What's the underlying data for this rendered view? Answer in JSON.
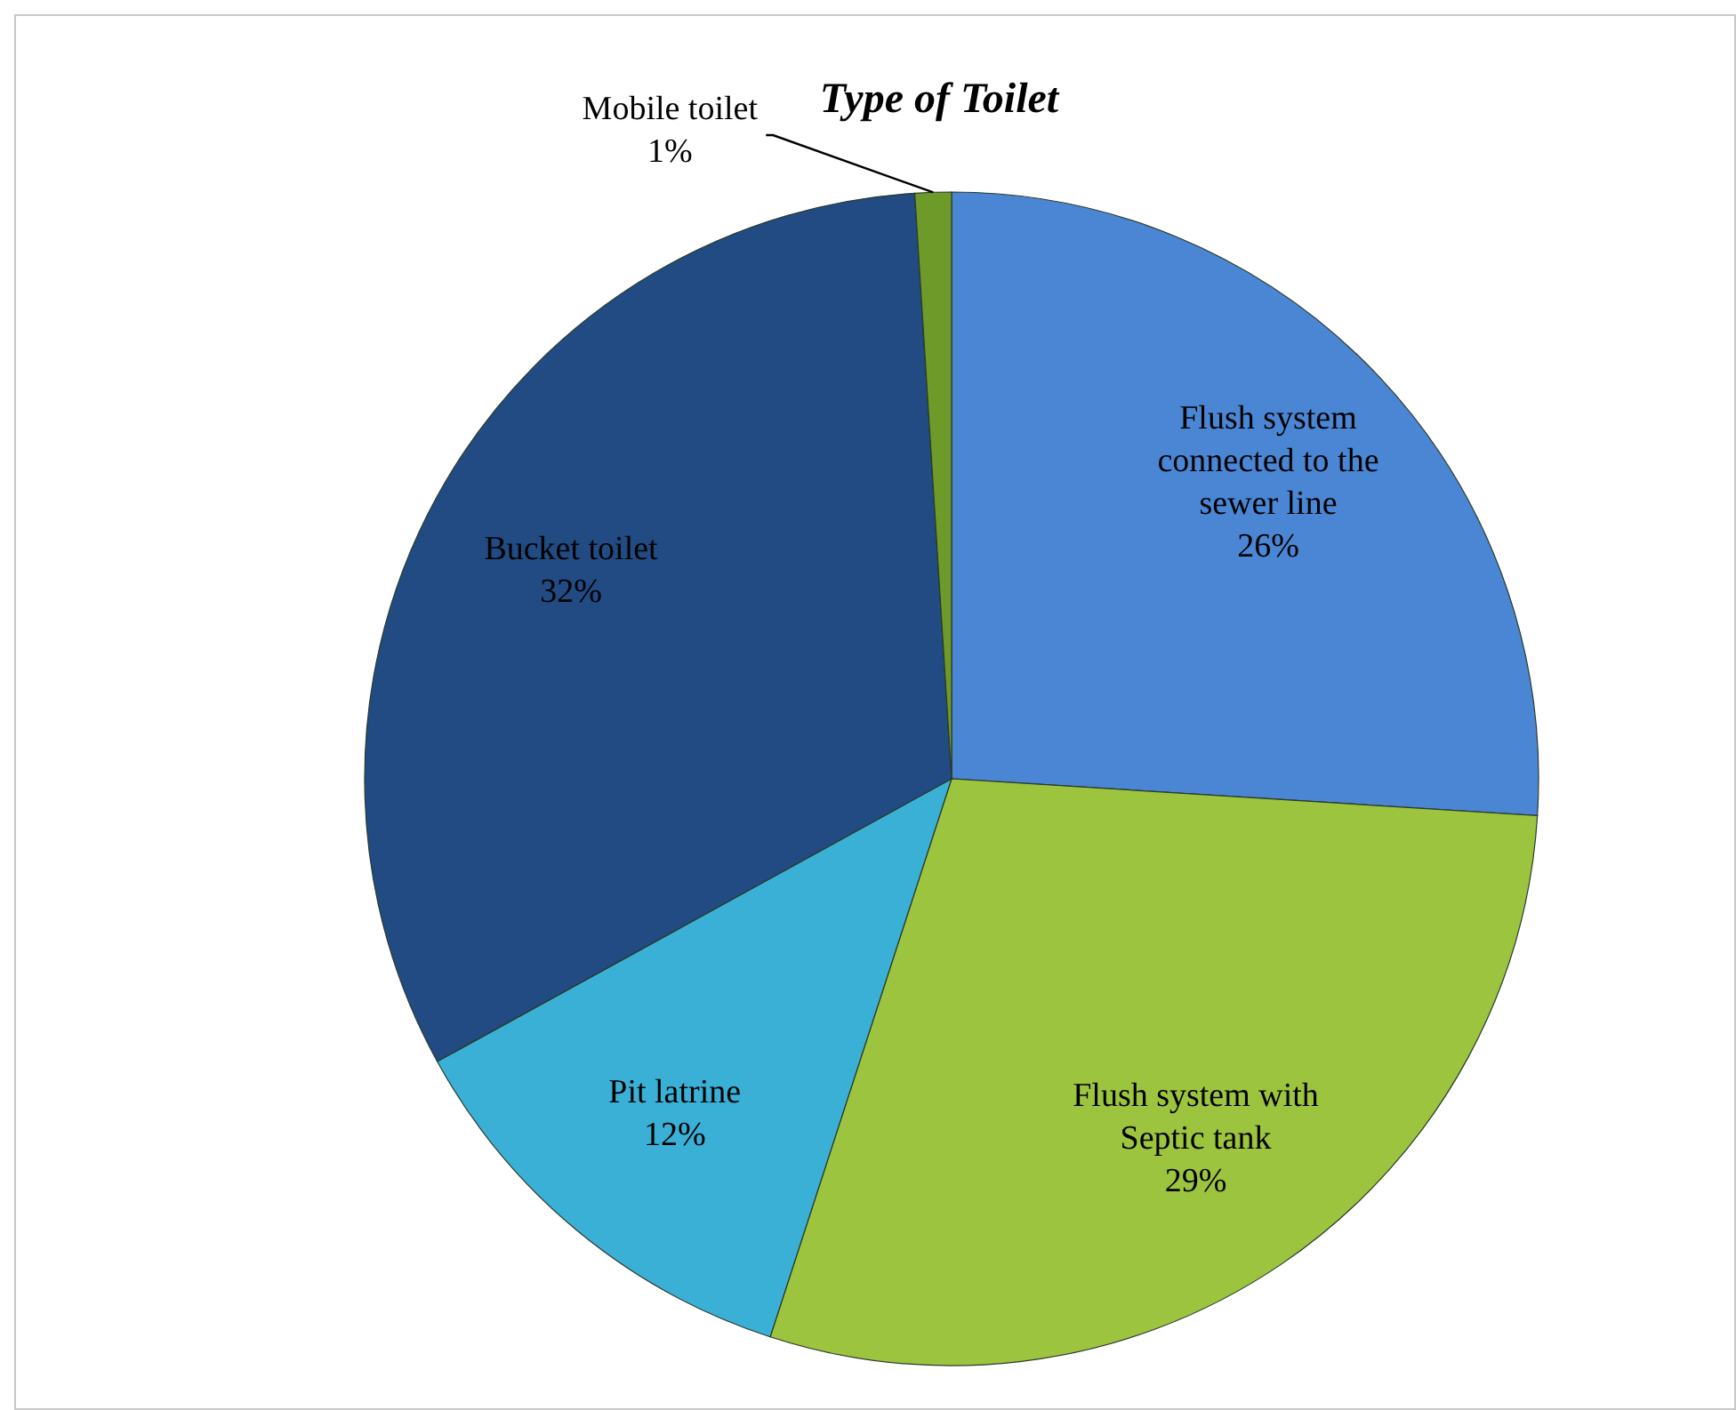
{
  "chart_data": {
    "type": "pie",
    "title": "Type of Toilet",
    "categories": [
      "Flush system connected to the sewer line",
      "Flush system with Septic tank",
      "Pit latrine",
      "Bucket toilet",
      "Mobile toilet"
    ],
    "values": [
      26,
      29,
      12,
      32,
      1
    ],
    "colors": [
      "#4a86d4",
      "#9cc43f",
      "#3bb0d6",
      "#214b82",
      "#6e9a2a"
    ],
    "value_labels": [
      "26%",
      "29%",
      "12%",
      "32%",
      "1%"
    ]
  }
}
